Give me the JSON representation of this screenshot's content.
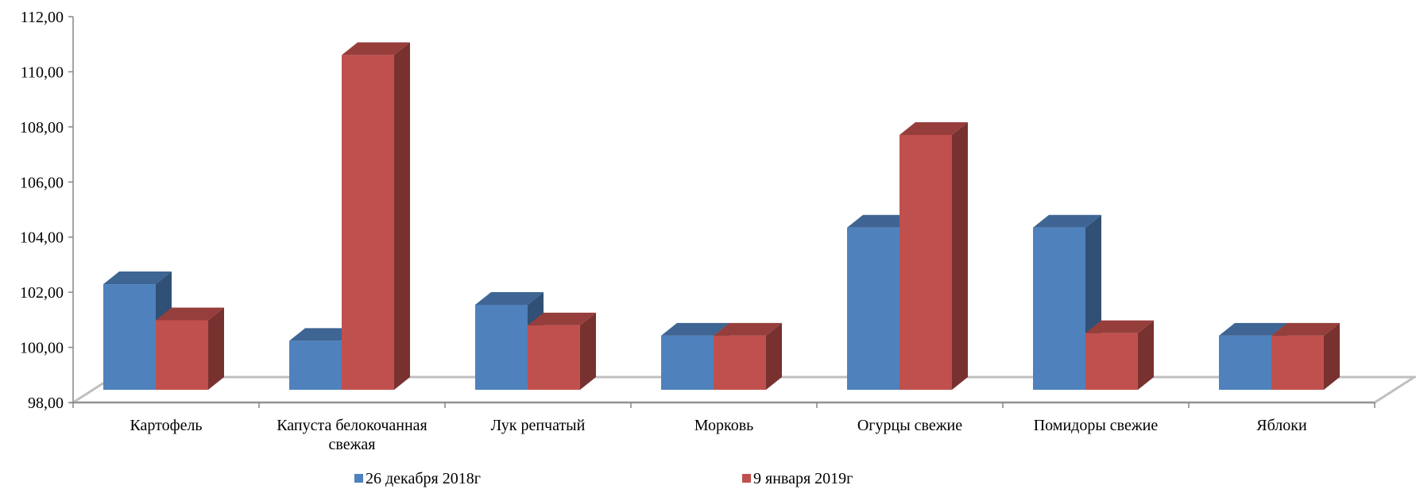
{
  "chart_data": {
    "type": "bar",
    "title": "",
    "xlabel": "",
    "ylabel": "",
    "ylim": [
      98,
      112
    ],
    "yticks": [
      "98,00",
      "100,00",
      "102,00",
      "104,00",
      "106,00",
      "108,00",
      "110,00",
      "112,00"
    ],
    "categories": [
      [
        "Картофель"
      ],
      [
        "Капуста белокочанная",
        "свежая"
      ],
      [
        "Лук репчатый"
      ],
      [
        "Морковь"
      ],
      [
        "Огурцы свежие"
      ],
      [
        "Помидоры свежие"
      ],
      [
        "Яблоки"
      ]
    ],
    "series": [
      {
        "name": "26 декабря 2018г",
        "color": "#4F81BD",
        "values": [
          102.1,
          99.9,
          101.3,
          100.1,
          104.3,
          104.3,
          100.1
        ]
      },
      {
        "name": "9 января 2019г",
        "color": "#C0504D",
        "values": [
          100.7,
          111.0,
          100.5,
          100.1,
          107.9,
          100.2,
          100.1
        ]
      }
    ],
    "grid": false,
    "legend_position": "bottom",
    "style": "3d-clustered-column"
  }
}
